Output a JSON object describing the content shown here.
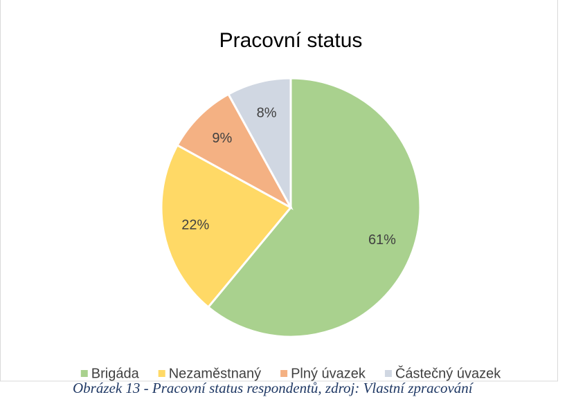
{
  "chart_data": {
    "type": "pie",
    "title": "Pracovní status",
    "categories": [
      "Brigáda",
      "Nezaměstnaný",
      "Plný úvazek",
      "Částečný úvazek"
    ],
    "values": [
      61,
      22,
      9,
      8
    ],
    "value_labels": [
      "61%",
      "22%",
      "9%",
      "8%"
    ],
    "colors": [
      "#a9d18e",
      "#ffd966",
      "#f4b183",
      "#d0d7e2"
    ],
    "legend": "bottom"
  },
  "caption": "Obrázek 13 - Pracovní status respondentů, zdroj: Vlastní zpracování"
}
